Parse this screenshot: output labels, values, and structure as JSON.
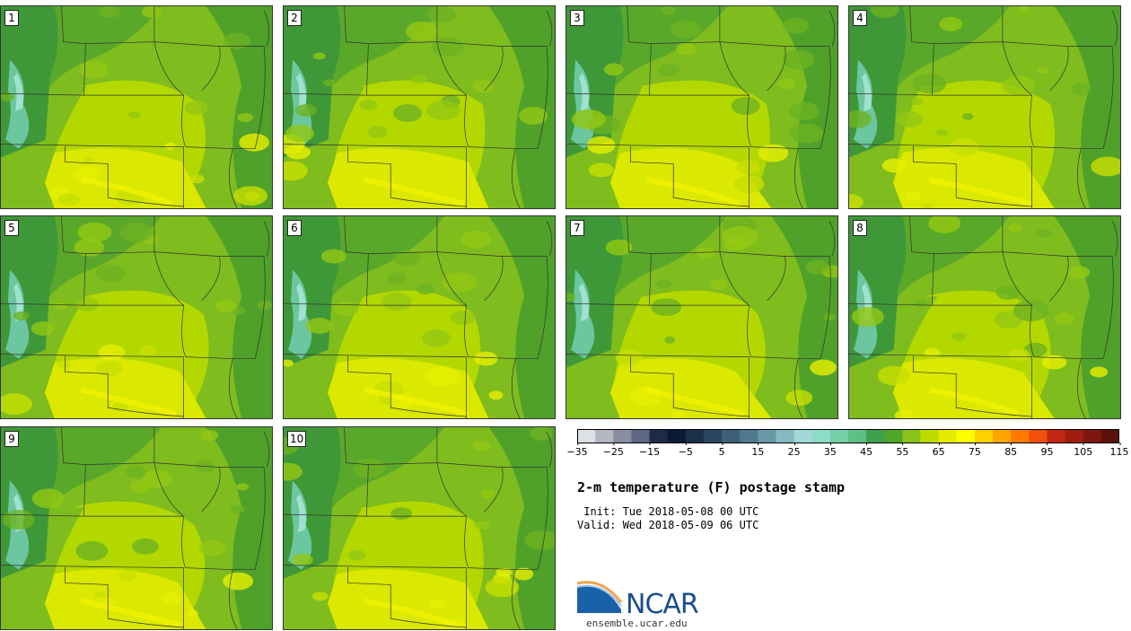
{
  "members": [
    {
      "label": "1"
    },
    {
      "label": "2"
    },
    {
      "label": "3"
    },
    {
      "label": "4"
    },
    {
      "label": "5"
    },
    {
      "label": "6"
    },
    {
      "label": "7"
    },
    {
      "label": "8"
    },
    {
      "label": "9"
    },
    {
      "label": "10"
    }
  ],
  "colorbar": {
    "ticks": [
      "−35",
      "−25",
      "−15",
      "−5",
      "5",
      "15",
      "25",
      "35",
      "45",
      "55",
      "65",
      "75",
      "85",
      "95",
      "105",
      "115"
    ],
    "colors": [
      "#dde0e5",
      "#b3b7c2",
      "#898fa0",
      "#606784",
      "#1e2a48",
      "#0b1a33",
      "#1b2f4a",
      "#2a4560",
      "#3e5f78",
      "#4f7a8e",
      "#6798a6",
      "#85b9c2",
      "#a2d9d8",
      "#8cdcc9",
      "#74cfa8",
      "#5bbf86",
      "#3ea14c",
      "#50a62a",
      "#8ac41a",
      "#bcdc00",
      "#e5ec00",
      "#ffff00",
      "#ffd000",
      "#ffa400",
      "#ff7b00",
      "#f24e0d",
      "#c12910",
      "#a01e10",
      "#80170e",
      "#5c120b"
    ]
  },
  "title": "2-m temperature (F) postage stamp",
  "init_line": " Init: Tue 2018-05-08 00 UTC",
  "valid_line": "Valid: Wed 2018-05-09 06 UTC",
  "logo": {
    "text": "NCAR",
    "url": "ensemble.ucar.edu"
  }
}
